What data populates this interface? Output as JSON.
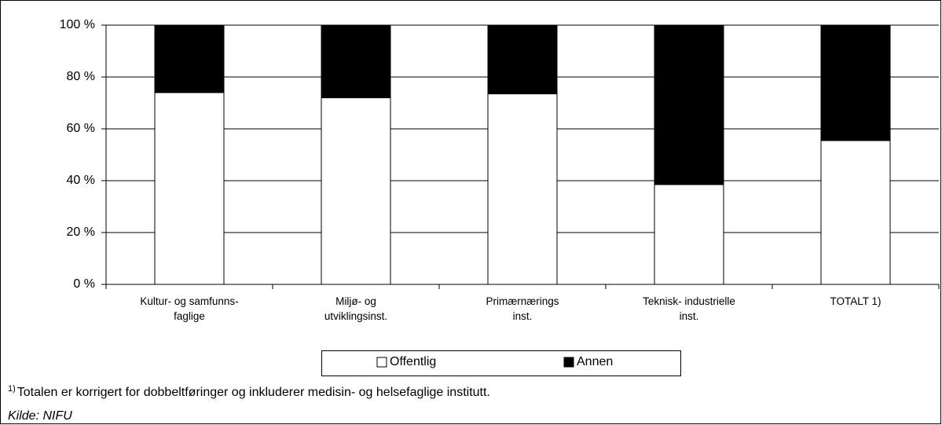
{
  "chart_data": {
    "type": "stacked_bar",
    "categories": [
      "Kultur- og samfunns-\nfaglige",
      "Miljø- og\nutviklingsinst.",
      "Primærnærings\ninst.",
      "Teknisk- industrielle\ninst.",
      "TOTALT 1)"
    ],
    "series": [
      {
        "name": "Offentlig",
        "color": "#ffffff",
        "values": [
          74,
          72,
          73.5,
          38.5,
          55.5
        ]
      },
      {
        "name": "Annen",
        "color": "#000000",
        "values": [
          26,
          28,
          26.5,
          61.5,
          44.5
        ]
      }
    ],
    "ylim": [
      0,
      100
    ],
    "yticks": [
      {
        "value": 0,
        "label": "0 %"
      },
      {
        "value": 20,
        "label": "20 %"
      },
      {
        "value": 40,
        "label": "40 %"
      },
      {
        "value": 60,
        "label": "60 %"
      },
      {
        "value": 80,
        "label": "80 %"
      },
      {
        "value": 100,
        "label": "100 %"
      }
    ],
    "grid": true
  },
  "footnote": {
    "marker": "1)",
    "text": "Totalen er korrigert for dobbeltføringer og inkluderer medisin- og helsefaglige institutt."
  },
  "source": "Kilde: NIFU"
}
